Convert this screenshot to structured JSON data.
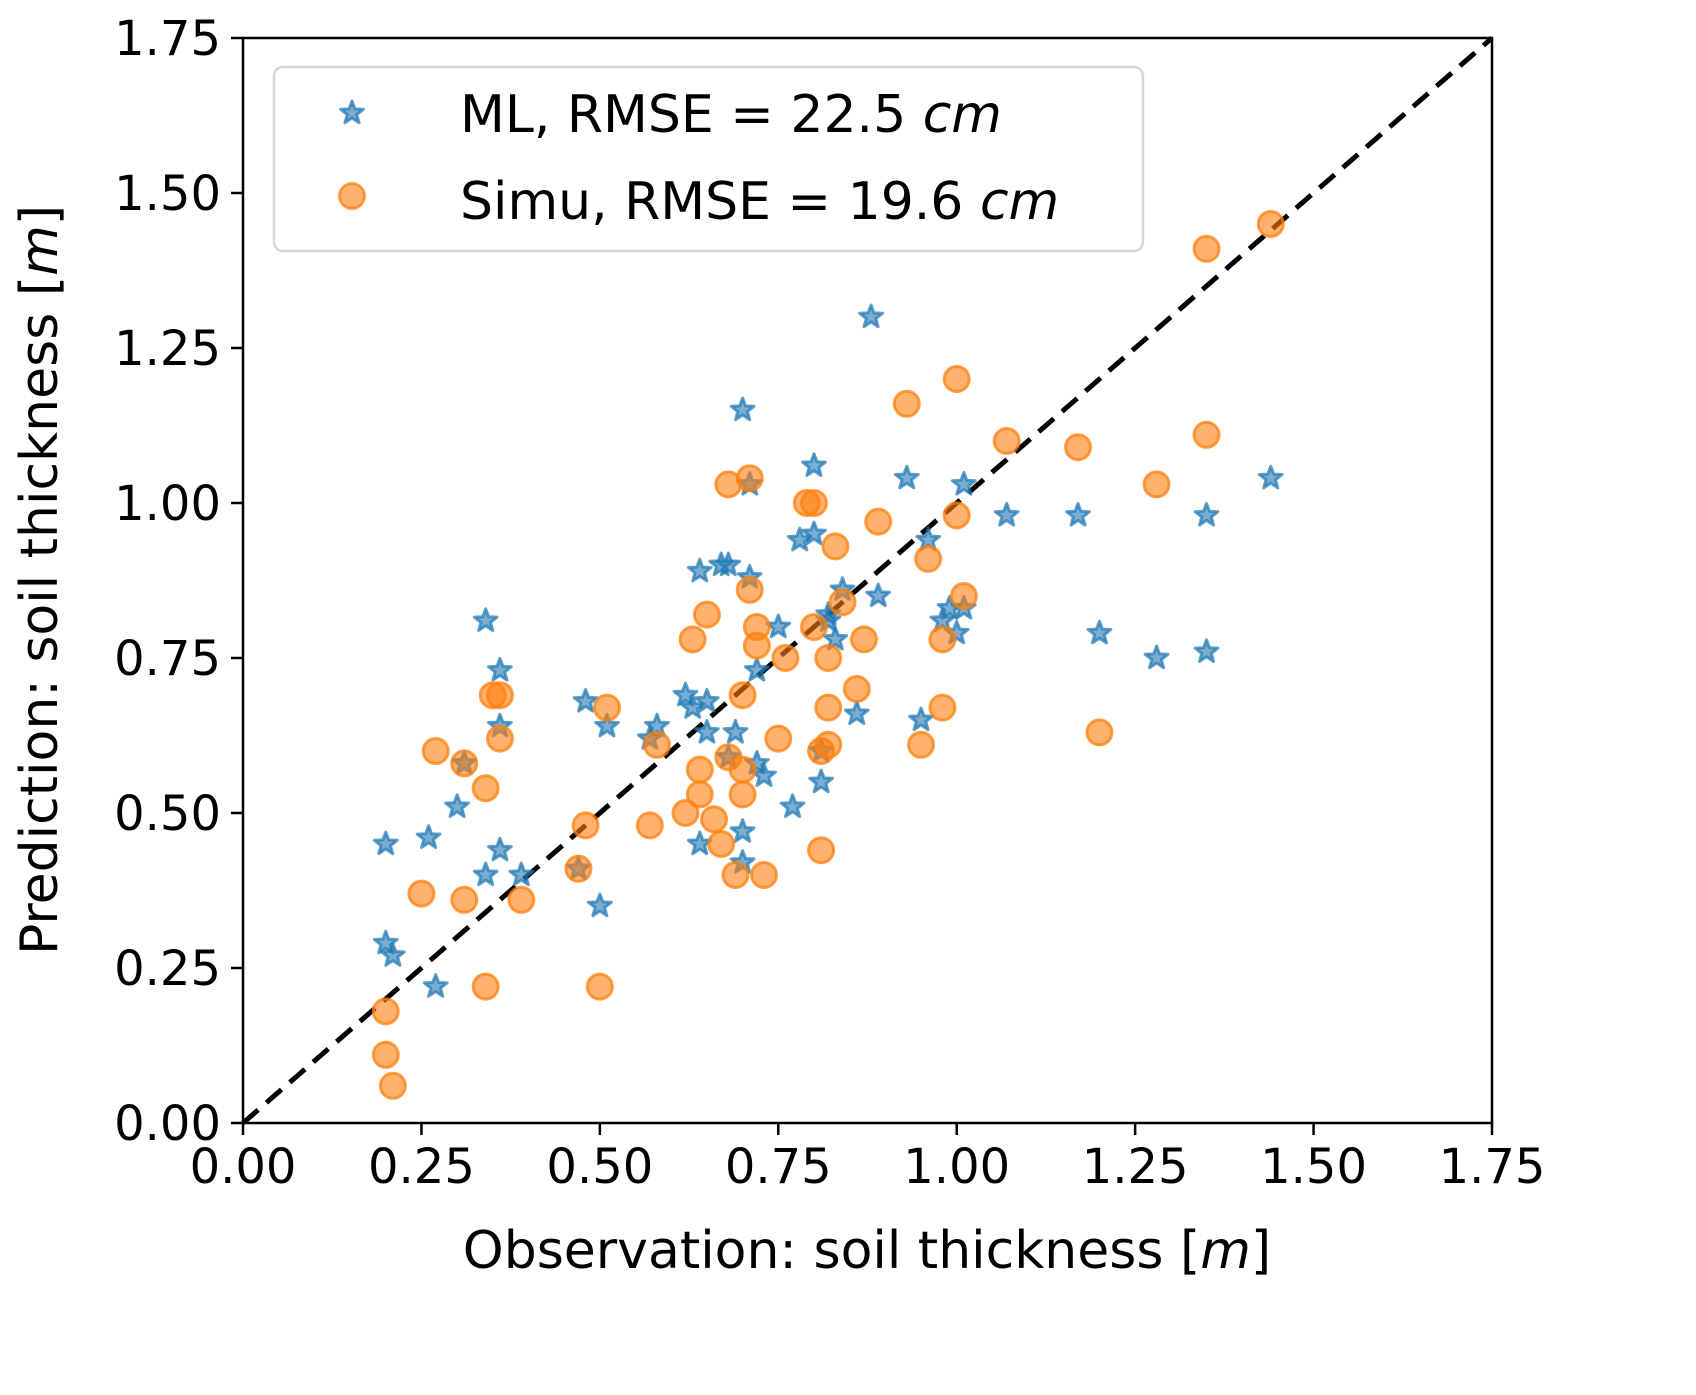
{
  "chart_data": {
    "type": "scatter",
    "title": "",
    "xlabel": "Observation: soil thickness [",
    "xlabel_unit": "m",
    "xlabel_close": "]",
    "ylabel": "Prediction: soil thickness [",
    "ylabel_unit": "m",
    "ylabel_close": "]",
    "xlim": [
      0,
      1.75
    ],
    "ylim": [
      0,
      1.75
    ],
    "xticks": [
      "0.00",
      "0.25",
      "0.50",
      "0.75",
      "1.00",
      "1.25",
      "1.50",
      "1.75"
    ],
    "yticks": [
      "0.00",
      "0.25",
      "0.50",
      "0.75",
      "1.00",
      "1.25",
      "1.50",
      "1.75"
    ],
    "grid": false,
    "legend_position": "top-left",
    "reference_line": {
      "label": "1:1 line",
      "style": "dashed",
      "color": "#000000",
      "from": [
        0,
        0
      ],
      "to": [
        1.75,
        1.75
      ]
    },
    "series": [
      {
        "name": "ML",
        "legend_label": "ML, RMSE = 22.5 ",
        "legend_unit": "cm",
        "marker": "star",
        "color": "#1f77b4",
        "points": [
          [
            0.2,
            0.29
          ],
          [
            0.21,
            0.27
          ],
          [
            0.2,
            0.45
          ],
          [
            0.26,
            0.46
          ],
          [
            0.27,
            0.22
          ],
          [
            0.3,
            0.51
          ],
          [
            0.31,
            0.58
          ],
          [
            0.34,
            0.4
          ],
          [
            0.34,
            0.81
          ],
          [
            0.36,
            0.64
          ],
          [
            0.36,
            0.73
          ],
          [
            0.36,
            0.44
          ],
          [
            0.39,
            0.4
          ],
          [
            0.47,
            0.41
          ],
          [
            0.48,
            0.68
          ],
          [
            0.5,
            0.35
          ],
          [
            0.51,
            0.64
          ],
          [
            0.57,
            0.62
          ],
          [
            0.58,
            0.64
          ],
          [
            0.62,
            0.69
          ],
          [
            0.63,
            0.67
          ],
          [
            0.64,
            0.89
          ],
          [
            0.64,
            0.45
          ],
          [
            0.65,
            0.63
          ],
          [
            0.65,
            0.68
          ],
          [
            0.67,
            0.9
          ],
          [
            0.68,
            0.9
          ],
          [
            0.68,
            0.59
          ],
          [
            0.69,
            0.63
          ],
          [
            0.7,
            0.47
          ],
          [
            0.7,
            0.42
          ],
          [
            0.7,
            1.15
          ],
          [
            0.71,
            0.88
          ],
          [
            0.71,
            1.03
          ],
          [
            0.72,
            0.73
          ],
          [
            0.72,
            0.58
          ],
          [
            0.73,
            0.56
          ],
          [
            0.75,
            0.8
          ],
          [
            0.77,
            0.51
          ],
          [
            0.78,
            0.94
          ],
          [
            0.8,
            0.95
          ],
          [
            0.8,
            1.06
          ],
          [
            0.81,
            0.6
          ],
          [
            0.81,
            0.55
          ],
          [
            0.82,
            0.81
          ],
          [
            0.82,
            0.82
          ],
          [
            0.83,
            0.78
          ],
          [
            0.84,
            0.86
          ],
          [
            0.86,
            0.66
          ],
          [
            0.88,
            1.3
          ],
          [
            0.89,
            0.85
          ],
          [
            0.93,
            1.04
          ],
          [
            0.95,
            0.65
          ],
          [
            0.96,
            0.94
          ],
          [
            0.98,
            0.81
          ],
          [
            0.99,
            0.83
          ],
          [
            1.0,
            0.79
          ],
          [
            1.01,
            0.83
          ],
          [
            1.01,
            1.03
          ],
          [
            1.07,
            0.98
          ],
          [
            1.17,
            0.98
          ],
          [
            1.2,
            0.79
          ],
          [
            1.28,
            0.75
          ],
          [
            1.35,
            0.76
          ],
          [
            1.35,
            0.98
          ],
          [
            1.44,
            1.04
          ]
        ]
      },
      {
        "name": "Simu",
        "legend_label": "Simu, RMSE = 19.6 ",
        "legend_unit": "cm",
        "marker": "circle",
        "color": "#ff7f0e",
        "points": [
          [
            0.2,
            0.18
          ],
          [
            0.2,
            0.11
          ],
          [
            0.21,
            0.06
          ],
          [
            0.25,
            0.37
          ],
          [
            0.27,
            0.6
          ],
          [
            0.31,
            0.36
          ],
          [
            0.31,
            0.58
          ],
          [
            0.34,
            0.22
          ],
          [
            0.34,
            0.54
          ],
          [
            0.35,
            0.69
          ],
          [
            0.36,
            0.69
          ],
          [
            0.36,
            0.62
          ],
          [
            0.39,
            0.36
          ],
          [
            0.47,
            0.41
          ],
          [
            0.48,
            0.48
          ],
          [
            0.5,
            0.22
          ],
          [
            0.51,
            0.67
          ],
          [
            0.57,
            0.48
          ],
          [
            0.58,
            0.61
          ],
          [
            0.62,
            0.5
          ],
          [
            0.63,
            0.78
          ],
          [
            0.64,
            0.53
          ],
          [
            0.64,
            0.57
          ],
          [
            0.65,
            0.82
          ],
          [
            0.66,
            0.49
          ],
          [
            0.67,
            0.45
          ],
          [
            0.68,
            1.03
          ],
          [
            0.68,
            0.59
          ],
          [
            0.69,
            0.4
          ],
          [
            0.7,
            0.53
          ],
          [
            0.7,
            0.57
          ],
          [
            0.7,
            0.69
          ],
          [
            0.71,
            1.04
          ],
          [
            0.71,
            0.86
          ],
          [
            0.72,
            0.8
          ],
          [
            0.72,
            0.77
          ],
          [
            0.73,
            0.4
          ],
          [
            0.75,
            0.62
          ],
          [
            0.76,
            0.75
          ],
          [
            0.79,
            1.0
          ],
          [
            0.8,
            1.0
          ],
          [
            0.8,
            0.8
          ],
          [
            0.81,
            0.44
          ],
          [
            0.81,
            0.6
          ],
          [
            0.82,
            0.75
          ],
          [
            0.82,
            0.67
          ],
          [
            0.82,
            0.61
          ],
          [
            0.83,
            0.93
          ],
          [
            0.84,
            0.84
          ],
          [
            0.86,
            0.7
          ],
          [
            0.87,
            0.78
          ],
          [
            0.89,
            0.97
          ],
          [
            0.93,
            1.16
          ],
          [
            0.95,
            0.61
          ],
          [
            0.96,
            0.91
          ],
          [
            0.98,
            0.67
          ],
          [
            0.98,
            0.78
          ],
          [
            1.0,
            0.98
          ],
          [
            1.0,
            1.2
          ],
          [
            1.01,
            0.85
          ],
          [
            1.07,
            1.1
          ],
          [
            1.17,
            1.09
          ],
          [
            1.2,
            0.63
          ],
          [
            1.28,
            1.03
          ],
          [
            1.35,
            1.11
          ],
          [
            1.35,
            1.41
          ],
          [
            1.44,
            1.45
          ]
        ]
      }
    ]
  }
}
